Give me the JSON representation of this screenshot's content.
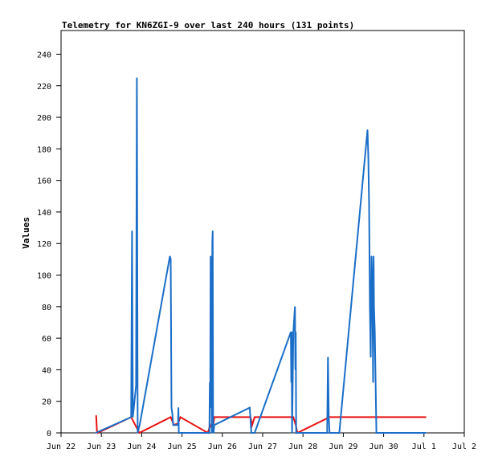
{
  "chart_data": {
    "type": "line",
    "title": "Telemetry for KN6ZGI-9 over last 240 hours (131 points)",
    "xlabel": "",
    "ylabel": "Values",
    "ylim": [
      0,
      255
    ],
    "xlim": [
      0,
      10
    ],
    "grid": false,
    "y_ticks": [
      0,
      20,
      40,
      60,
      80,
      100,
      120,
      140,
      160,
      180,
      200,
      220,
      240
    ],
    "x_ticks": [
      {
        "x": 0,
        "label": "Jun 22"
      },
      {
        "x": 1,
        "label": "Jun 23"
      },
      {
        "x": 2,
        "label": "Jun 24"
      },
      {
        "x": 3,
        "label": "Jun 25"
      },
      {
        "x": 4,
        "label": "Jun 26"
      },
      {
        "x": 5,
        "label": "Jun 27"
      },
      {
        "x": 6,
        "label": "Jun 28"
      },
      {
        "x": 7,
        "label": "Jun 29"
      },
      {
        "x": 8,
        "label": "Jun 30"
      },
      {
        "x": 9,
        "label": "Jul 1"
      },
      {
        "x": 10,
        "label": "Jul 2"
      }
    ],
    "series": [
      {
        "color": "#e81010",
        "x": [
          0.87,
          0.89,
          0.91,
          1.74,
          1.84,
          1.88,
          1.94,
          2.72,
          2.8,
          2.9,
          2.96,
          3.64,
          3.7,
          3.76,
          3.8,
          4.7,
          4.74,
          4.8,
          5.76,
          5.82,
          5.86,
          6.66,
          6.7,
          9.05
        ],
        "y": [
          11,
          1,
          0,
          10,
          5,
          3,
          0,
          10,
          5,
          6,
          10,
          0,
          5,
          2,
          10,
          10,
          5,
          10,
          10,
          5,
          0,
          10,
          10,
          10
        ]
      },
      {
        "color": "#1a6ec8",
        "x": [
          0.86,
          1.74,
          1.75,
          1.76,
          1.77,
          1.78,
          1.86,
          1.87,
          1.88,
          1.89,
          1.9,
          1.95,
          2.7,
          2.72,
          2.74,
          2.76,
          2.78,
          2.9,
          2.91,
          2.92,
          3.68,
          3.69,
          3.7,
          3.71,
          3.74,
          3.75,
          3.76,
          3.77,
          3.78,
          3.8,
          4.68,
          4.7,
          4.72,
          4.8,
          5.7,
          5.71,
          5.72,
          5.73,
          5.76,
          5.8,
          5.81,
          5.82,
          5.83,
          6.6,
          6.62,
          6.64,
          6.66,
          6.9,
          7.6,
          7.62,
          7.64,
          7.66,
          7.68,
          7.7,
          7.72,
          7.74,
          7.75,
          7.76,
          7.78,
          7.8,
          7.82,
          8.0,
          9.05
        ],
        "y": [
          0,
          10,
          64,
          128,
          64,
          10,
          30,
          128,
          225,
          112,
          0,
          5,
          112,
          110,
          16,
          12,
          5,
          5,
          16,
          0,
          0,
          32,
          16,
          112,
          0,
          120,
          128,
          5,
          0,
          5,
          16,
          8,
          0,
          0,
          64,
          32,
          64,
          0,
          64,
          80,
          40,
          64,
          0,
          0,
          48,
          10,
          0,
          0,
          192,
          176,
          144,
          80,
          48,
          112,
          96,
          32,
          112,
          80,
          64,
          32,
          0,
          0,
          0
        ]
      }
    ]
  }
}
